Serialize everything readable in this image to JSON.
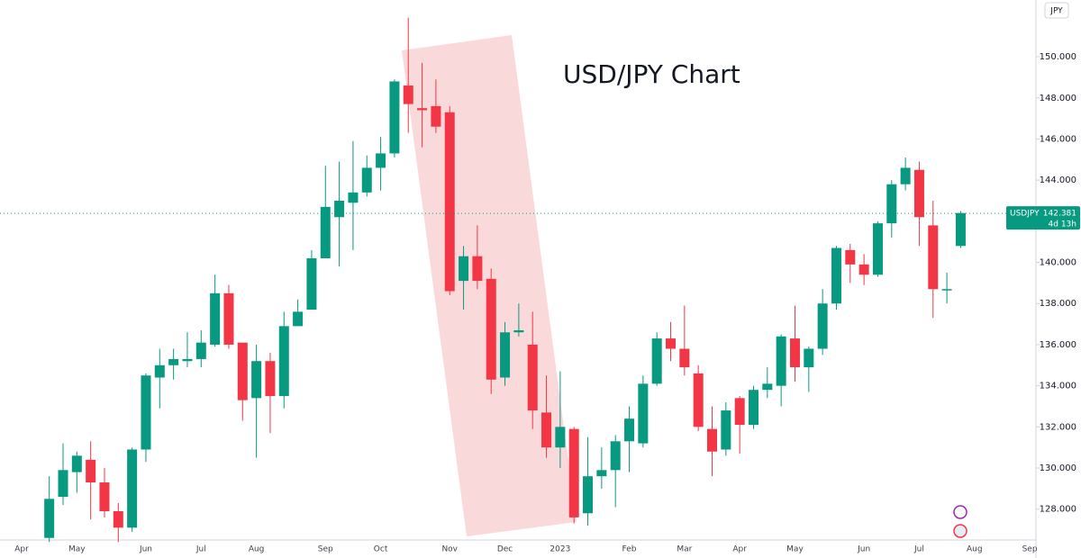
{
  "chart_data": {
    "type": "candlestick",
    "title": "USD/JPY Chart",
    "currency": "JPY",
    "up_color": "#089981",
    "down_color": "#f23645",
    "categories": [
      "Apr",
      null,
      null,
      null,
      "May",
      null,
      null,
      null,
      null,
      "Jun",
      null,
      null,
      null,
      "Jul",
      null,
      null,
      null,
      "Aug",
      null,
      null,
      null,
      null,
      "Sep",
      null,
      null,
      null,
      "Oct",
      null,
      null,
      null,
      null,
      "Nov",
      null,
      null,
      null,
      "Dec",
      null,
      null,
      null,
      "2023",
      null,
      null,
      null,
      null,
      "Feb",
      null,
      null,
      null,
      "Mar",
      null,
      null,
      null,
      "Apr",
      null,
      null,
      null,
      "May",
      null,
      null,
      null,
      null,
      "Jun",
      null,
      null,
      null,
      "Jul",
      null,
      null,
      null,
      "Aug",
      null,
      null,
      null,
      "Sep"
    ],
    "open": [
      null,
      null,
      126.6,
      128.6,
      129.8,
      130.4,
      129.3,
      127.9,
      127.1,
      130.9,
      134.4,
      135.0,
      135.2,
      135.3,
      136.0,
      138.5,
      136.1,
      133.4,
      135.2,
      133.5,
      136.9,
      137.7,
      140.2,
      142.2,
      142.9,
      143.4,
      144.6,
      145.3,
      148.6,
      147.5,
      147.6,
      147.3,
      139.1,
      140.3,
      139.2,
      134.4,
      136.6,
      136.0,
      132.7,
      131.0,
      131.9,
      127.8,
      129.6,
      129.9,
      131.3,
      131.2,
      134.1,
      136.3,
      135.8,
      134.6,
      131.9,
      130.9,
      133.4,
      132.1,
      133.8,
      134.0,
      136.3,
      134.9,
      135.8,
      138.0,
      140.6,
      139.9,
      139.4,
      141.9,
      143.8,
      144.5,
      141.8,
      138.7,
      140.8,
      null,
      null,
      null,
      null,
      null
    ],
    "high": [
      null,
      null,
      129.6,
      131.2,
      130.8,
      131.3,
      130.0,
      128.3,
      131.0,
      134.6,
      135.8,
      135.8,
      136.6,
      136.7,
      139.4,
      138.9,
      136.0,
      136.0,
      135.6,
      137.6,
      138.2,
      140.6,
      144.7,
      144.9,
      145.9,
      145.2,
      146.1,
      148.9,
      151.9,
      149.7,
      148.9,
      147.6,
      140.8,
      141.8,
      139.7,
      137.1,
      138.0,
      137.6,
      134.5,
      134.7,
      132.0,
      131.5,
      131.0,
      131.6,
      133.0,
      134.5,
      136.6,
      137.1,
      137.9,
      135.0,
      133.0,
      133.2,
      133.5,
      134.0,
      134.9,
      136.5,
      137.9,
      135.9,
      138.7,
      140.8,
      140.9,
      140.4,
      142.0,
      144.0,
      145.1,
      144.9,
      143.0,
      139.5,
      142.5,
      null,
      null,
      null,
      null,
      null
    ],
    "low": [
      null,
      null,
      126.4,
      128.2,
      128.8,
      127.5,
      127.6,
      126.4,
      126.9,
      130.3,
      132.9,
      134.3,
      134.9,
      134.9,
      135.9,
      135.8,
      132.3,
      130.5,
      131.7,
      132.9,
      136.9,
      137.7,
      140.2,
      139.8,
      140.6,
      143.2,
      143.5,
      145.1,
      146.3,
      145.6,
      146.3,
      138.4,
      137.7,
      138.7,
      133.6,
      134.0,
      136.4,
      131.9,
      130.5,
      130.0,
      127.3,
      127.2,
      129.0,
      128.1,
      129.8,
      131.0,
      134.0,
      135.2,
      134.5,
      131.8,
      129.6,
      130.6,
      130.7,
      131.9,
      133.4,
      133.0,
      134.2,
      133.7,
      135.5,
      137.7,
      139.0,
      138.9,
      139.3,
      141.2,
      143.5,
      140.8,
      137.3,
      138.0,
      140.7,
      null,
      null,
      null,
      null,
      null
    ],
    "close": [
      null,
      null,
      128.5,
      129.9,
      130.6,
      129.3,
      127.9,
      127.1,
      130.9,
      134.5,
      135.0,
      135.3,
      135.3,
      136.1,
      138.5,
      136.0,
      133.3,
      135.2,
      133.5,
      136.9,
      137.6,
      140.2,
      142.7,
      143.0,
      143.4,
      144.6,
      145.3,
      148.8,
      147.7,
      147.4,
      146.6,
      138.6,
      140.3,
      139.1,
      134.3,
      136.6,
      136.7,
      132.8,
      131.0,
      132.0,
      127.6,
      129.6,
      129.9,
      131.3,
      132.4,
      134.1,
      136.3,
      135.8,
      134.9,
      132.0,
      130.8,
      132.8,
      132.1,
      133.8,
      134.1,
      136.4,
      134.9,
      135.8,
      138.0,
      140.7,
      139.9,
      139.4,
      141.9,
      143.8,
      144.6,
      142.2,
      138.7,
      138.7,
      142.4,
      null,
      null,
      null,
      null,
      null
    ],
    "ylim": [
      126.5,
      152.76
    ],
    "yticks": [
      {
        "value": 128,
        "label": "128.000"
      },
      {
        "value": 130,
        "label": "130.000"
      },
      {
        "value": 132,
        "label": "132.000"
      },
      {
        "value": 134,
        "label": "134.000"
      },
      {
        "value": 136,
        "label": "136.000"
      },
      {
        "value": 138,
        "label": "138.000"
      },
      {
        "value": 140,
        "label": "140.000"
      },
      {
        "value": 142,
        "label": "142.000"
      },
      {
        "value": 144,
        "label": "144.000"
      },
      {
        "value": 146,
        "label": "146.000"
      },
      {
        "value": 148,
        "label": "148.000"
      },
      {
        "value": 150,
        "label": "150.000"
      }
    ],
    "last_price": {
      "symbol": "USDJPY",
      "value": 142.381,
      "countdown": "4d 13h"
    }
  }
}
